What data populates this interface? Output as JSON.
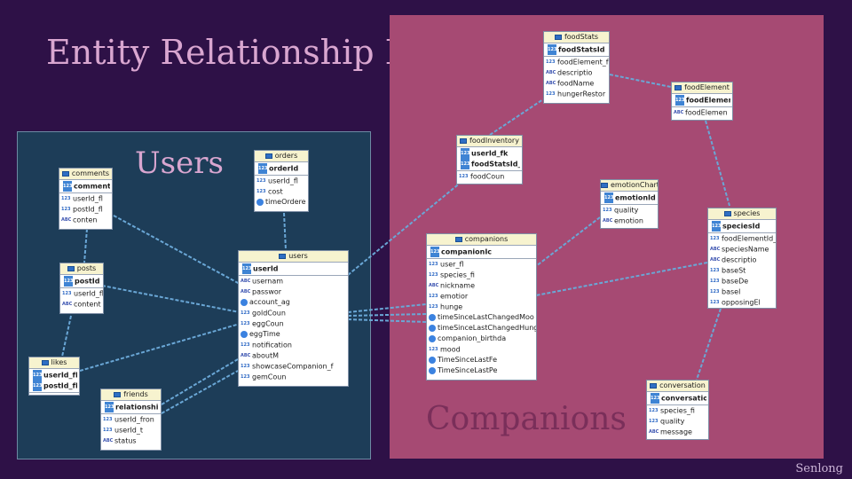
{
  "title": "Entity Relationship Diagram",
  "users_label": "Users",
  "companions_label": "Companions",
  "credit": "Senlong",
  "colors": {
    "background": "#2e1147",
    "users_panel": "#1d3d58",
    "companions_panel": "#a64a73",
    "link": "#6aa7d6"
  },
  "entities": {
    "comments": {
      "name": "comments",
      "pk": "commentId",
      "cols": [
        {
          "t": "123",
          "n": "userId_fl"
        },
        {
          "t": "123",
          "n": "postId_fl"
        },
        {
          "t": "abc",
          "n": "conten"
        }
      ]
    },
    "orders": {
      "name": "orders",
      "pk": "orderId",
      "cols": [
        {
          "t": "123",
          "n": "userId_fl"
        },
        {
          "t": "123",
          "n": "cost"
        },
        {
          "t": "dt",
          "n": "timeOrdere"
        }
      ]
    },
    "posts": {
      "name": "posts",
      "pk": "postId",
      "cols": [
        {
          "t": "123",
          "n": "userId_fl"
        },
        {
          "t": "abc",
          "n": "content"
        }
      ]
    },
    "users": {
      "name": "users",
      "pk": "userId",
      "cols": [
        {
          "t": "abc",
          "n": "usernam"
        },
        {
          "t": "abc",
          "n": "passwor"
        },
        {
          "t": "dt",
          "n": "account_ag"
        },
        {
          "t": "123",
          "n": "goldCoun"
        },
        {
          "t": "123",
          "n": "eggCoun"
        },
        {
          "t": "dt",
          "n": "eggTime"
        },
        {
          "t": "123",
          "n": "notification"
        },
        {
          "t": "abc",
          "n": "aboutM"
        },
        {
          "t": "123",
          "n": "showcaseCompanion_f"
        },
        {
          "t": "123",
          "n": "gemCoun"
        }
      ]
    },
    "likes": {
      "name": "likes",
      "pks": [
        "userId_fk",
        "postId_fk"
      ],
      "cols": []
    },
    "friends": {
      "name": "friends",
      "pk": "relationshipI",
      "cols": [
        {
          "t": "123",
          "n": "userId_fron"
        },
        {
          "t": "123",
          "n": "userId_t"
        },
        {
          "t": "abc",
          "n": "status"
        }
      ]
    },
    "foodStats": {
      "name": "foodStats",
      "pk": "foodStatsId",
      "cols": [
        {
          "t": "123",
          "n": "foodElement_f"
        },
        {
          "t": "abc",
          "n": "descriptio"
        },
        {
          "t": "abc",
          "n": "foodName"
        },
        {
          "t": "123",
          "n": "hungerRestor"
        }
      ]
    },
    "foodElement": {
      "name": "foodElement",
      "pk": "foodElementId",
      "cols": [
        {
          "t": "abc",
          "n": "foodElemen"
        }
      ]
    },
    "foodInventory": {
      "name": "foodInventory",
      "pks": [
        "userId_fk",
        "foodStatsId_fk"
      ],
      "cols": [
        {
          "t": "123",
          "n": "foodCoun"
        }
      ]
    },
    "emotionChart": {
      "name": "emotionChart",
      "pk": "emotionId",
      "cols": [
        {
          "t": "123",
          "n": "quality"
        },
        {
          "t": "abc",
          "n": "emotion"
        }
      ]
    },
    "species": {
      "name": "species",
      "pk": "speciesId",
      "cols": [
        {
          "t": "123",
          "n": "foodElementId_f"
        },
        {
          "t": "abc",
          "n": "speciesName"
        },
        {
          "t": "abc",
          "n": "descriptio"
        },
        {
          "t": "123",
          "n": "baseSt"
        },
        {
          "t": "123",
          "n": "baseDe"
        },
        {
          "t": "123",
          "n": "basel"
        },
        {
          "t": "123",
          "n": "opposingEl"
        }
      ]
    },
    "companions": {
      "name": "companions",
      "pk": "companionIc",
      "cols": [
        {
          "t": "123",
          "n": "user_fl"
        },
        {
          "t": "123",
          "n": "species_fi"
        },
        {
          "t": "abc",
          "n": "nickname"
        },
        {
          "t": "123",
          "n": "emotior"
        },
        {
          "t": "123",
          "n": "hunge"
        },
        {
          "t": "dt",
          "n": "timeSinceLastChangedMoo"
        },
        {
          "t": "dt",
          "n": "timeSinceLastChangedHung"
        },
        {
          "t": "dt",
          "n": "companion_birthda"
        },
        {
          "t": "123",
          "n": "mood"
        },
        {
          "t": "dt",
          "n": "TimeSinceLastFe"
        },
        {
          "t": "dt",
          "n": "TimeSinceLastPe"
        }
      ]
    },
    "conversation": {
      "name": "conversation",
      "pk": "conversationId",
      "cols": [
        {
          "t": "123",
          "n": "species_fi"
        },
        {
          "t": "123",
          "n": "quality"
        },
        {
          "t": "abc",
          "n": "message"
        }
      ]
    }
  }
}
